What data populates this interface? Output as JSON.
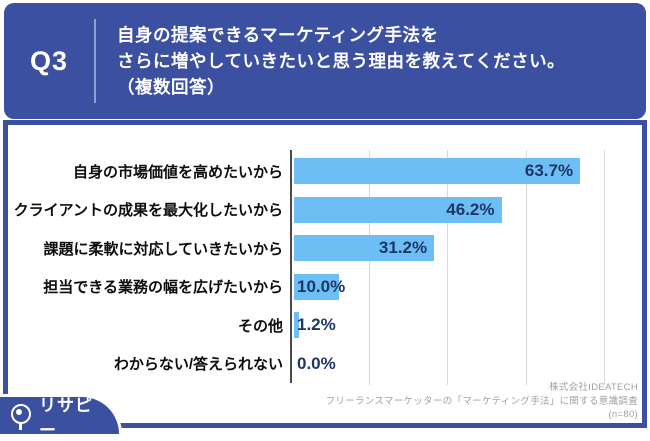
{
  "header": {
    "question_number": "Q3",
    "question_lines": [
      "自身の提案できるマーケティング手法を",
      "さらに増やしていきたいと思う理由を教えてください。",
      "（複数回答）"
    ]
  },
  "chart_data": {
    "type": "bar",
    "orientation": "horizontal",
    "categories": [
      "自身の市場価値を高めたいから",
      "クライアントの成果を最大化したいから",
      "課題に柔軟に対応していきたいから",
      "担当できる業務の幅を広げたいから",
      "その他",
      "わからない/答えられない"
    ],
    "values": [
      63.7,
      46.2,
      31.2,
      10.0,
      1.2,
      0.0
    ],
    "value_labels": [
      "63.7%",
      "46.2%",
      "31.2%",
      "10.0%",
      "1.2%",
      "0.0%"
    ],
    "xlim": [
      0,
      70
    ],
    "gridline_interval_percent": 17.5,
    "grid": true,
    "legend": "none",
    "bar_color": "#6cbef4",
    "value_label_color": "#1e3766"
  },
  "footer": {
    "credit_lines": [
      "株式会社IDEATECH",
      "フリーランスマーケッターの「マーケティング手法」に関する意識調査",
      "(n=80)"
    ]
  },
  "logo": {
    "text": "リサピー",
    "mark": "。"
  },
  "colors": {
    "brand_blue": "#3b50a0",
    "bar_blue": "#6cbef4",
    "value_navy": "#1e3766",
    "gridline_gray": "#d9d9d9",
    "credit_gray": "#a0a0a0"
  }
}
